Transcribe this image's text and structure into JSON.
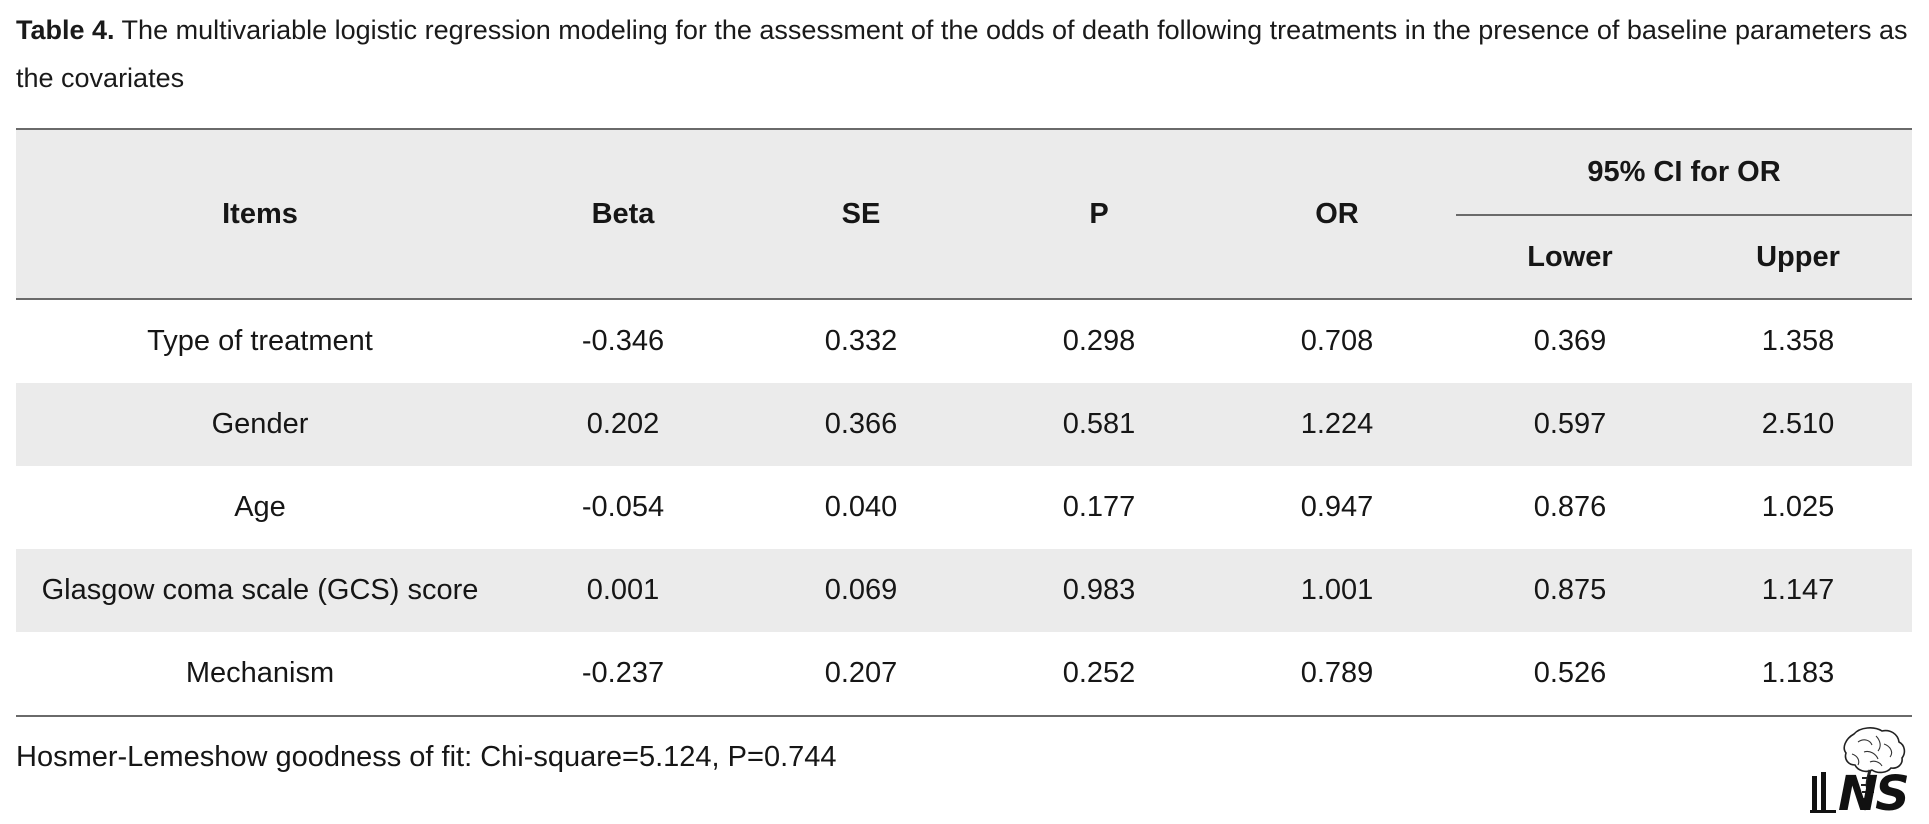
{
  "caption": {
    "label": "Table 4.",
    "text": " The multivariable logistic regression modeling for the assessment of the odds of death following treatments in the presence of baseline parameters as the covariates"
  },
  "table": {
    "headers": {
      "items": "Items",
      "beta": "Beta",
      "se": "SE",
      "p": "P",
      "or": "OR",
      "ci_group": "95% CI for OR",
      "lower": "Lower",
      "upper": "Upper"
    },
    "rows": [
      {
        "item": "Type of treatment",
        "beta": "-0.346",
        "se": "0.332",
        "p": "0.298",
        "or": "0.708",
        "lower": "0.369",
        "upper": "1.358"
      },
      {
        "item": "Gender",
        "beta": "0.202",
        "se": "0.366",
        "p": "0.581",
        "or": "1.224",
        "lower": "0.597",
        "upper": "2.510"
      },
      {
        "item": "Age",
        "beta": "-0.054",
        "se": "0.040",
        "p": "0.177",
        "or": "0.947",
        "lower": "0.876",
        "upper": "1.025"
      },
      {
        "item": "Glasgow coma scale (GCS) score",
        "beta": "0.001",
        "se": "0.069",
        "p": "0.983",
        "or": "1.001",
        "lower": "0.875",
        "upper": "1.147"
      },
      {
        "item": "Mechanism",
        "beta": "-0.237",
        "se": "0.207",
        "p": "0.252",
        "or": "0.789",
        "lower": "0.526",
        "upper": "1.183"
      }
    ]
  },
  "footnote": "Hosmer-Lemeshow goodness of fit: Chi-square=5.124, P=0.744",
  "logo": {
    "icon": "brain-spine-logo-icon",
    "text": "NS"
  }
}
